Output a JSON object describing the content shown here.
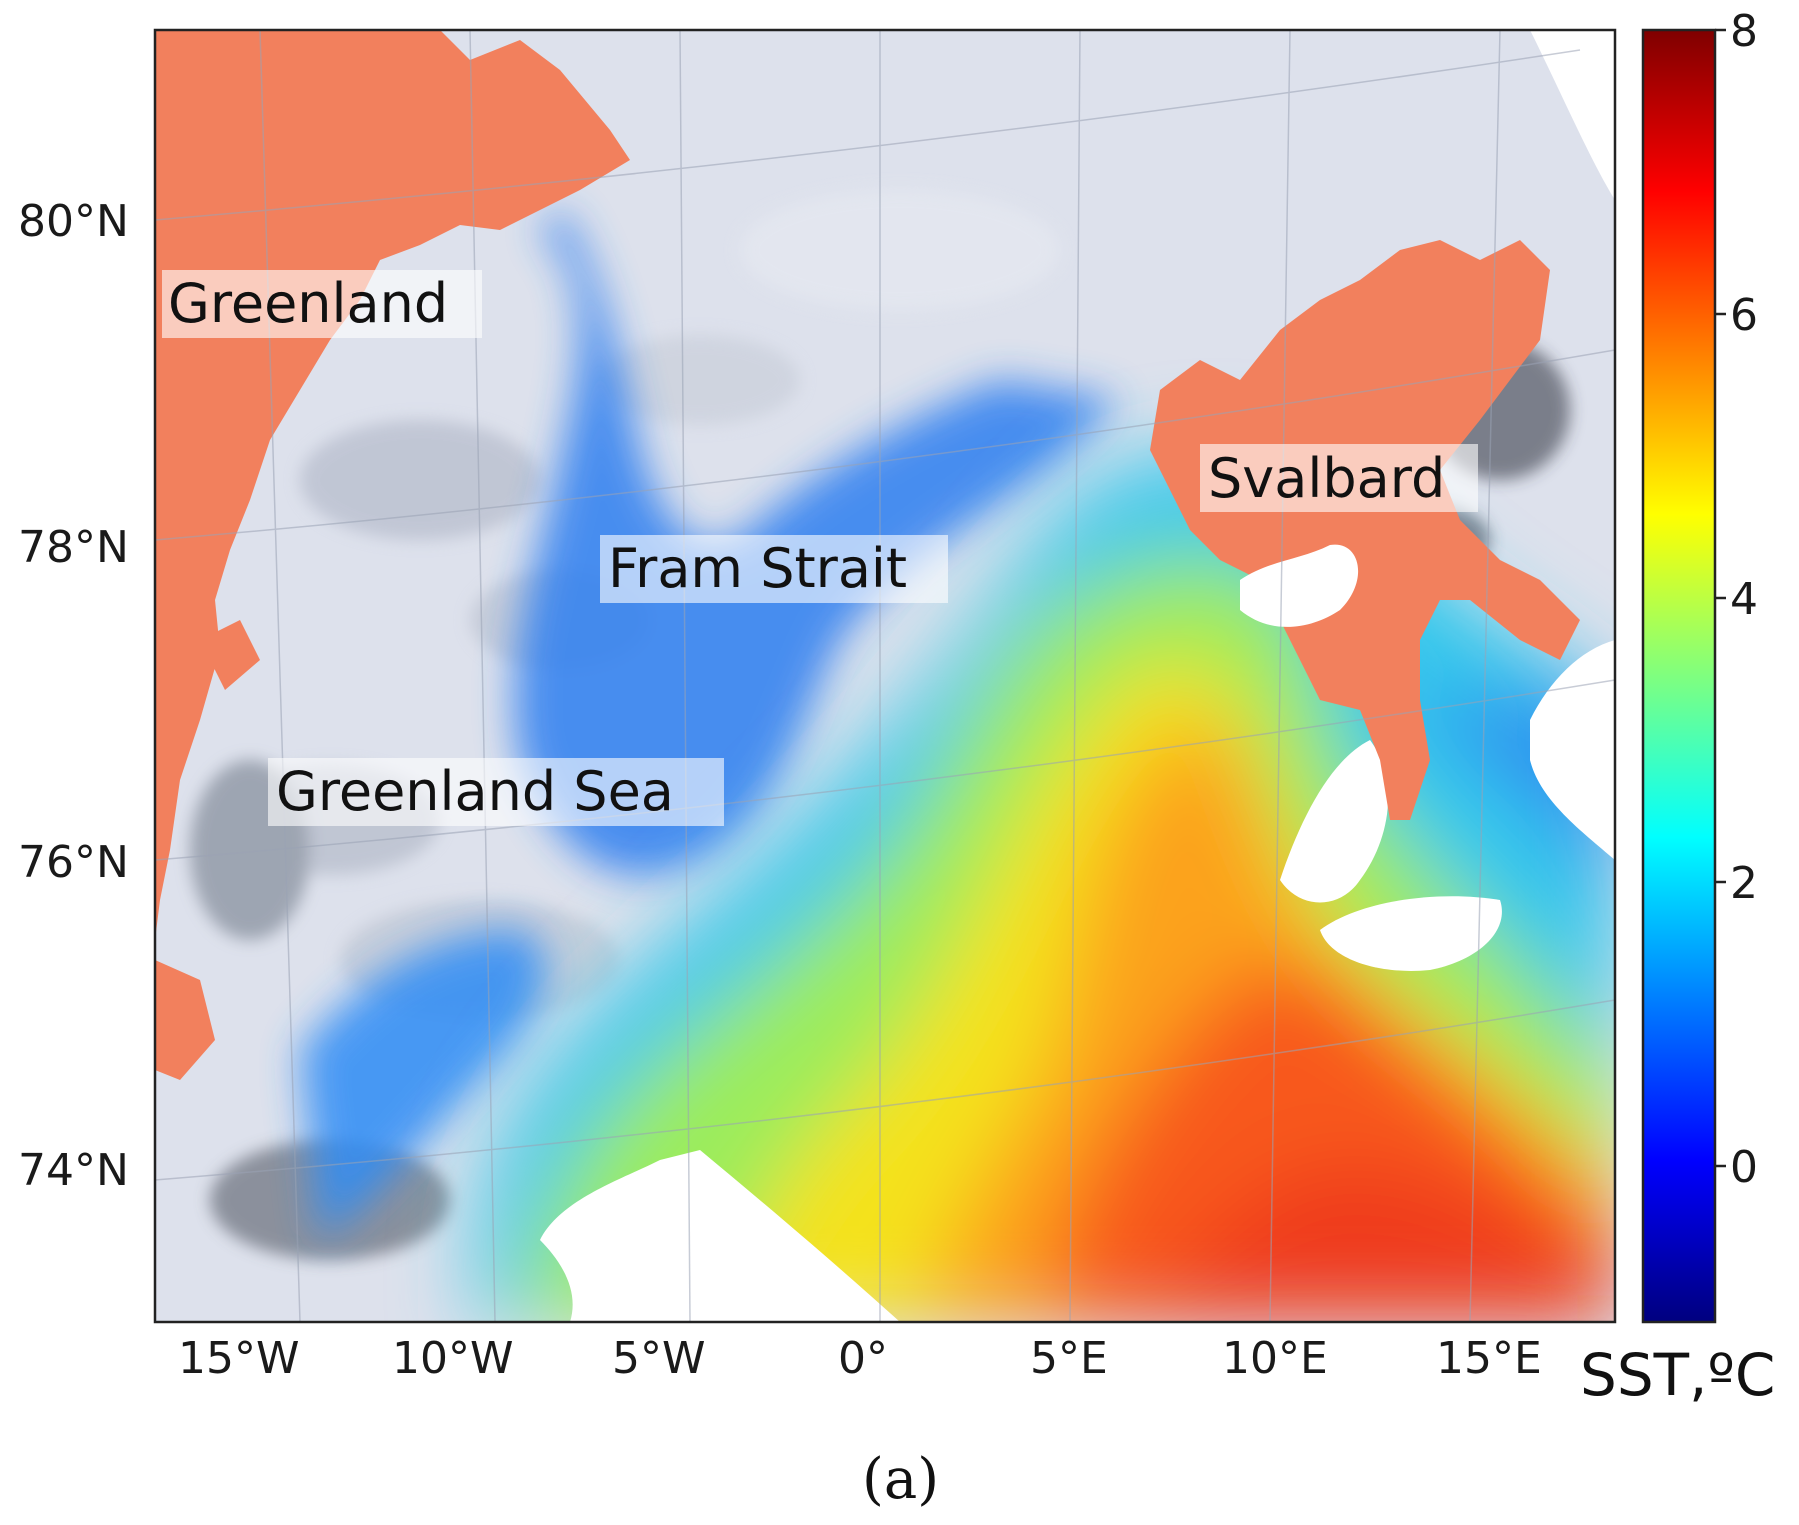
{
  "map": {
    "lat_labels": [
      "80°N",
      "78°N",
      "76°N",
      "74°N"
    ],
    "lon_labels": [
      "15°W",
      "10°W",
      "5°W",
      "0°",
      "5°E",
      "10°E",
      "15°E"
    ],
    "places": {
      "greenland": "Greenland",
      "fram_strait": "Fram Strait",
      "greenland_sea": "Greenland Sea",
      "svalbard": "Svalbard"
    },
    "colors": {
      "land": "#f2805d",
      "ice": "#dfe3ee",
      "no_data": "#ffffff",
      "frame": "#222222"
    }
  },
  "colorbar": {
    "ticks": [
      "8",
      "6",
      "4",
      "2",
      "0"
    ],
    "label": "SST,ºC",
    "min": -1.1,
    "max": 8,
    "colormap": [
      "#00007f",
      "#0000ff",
      "#007fff",
      "#00ffff",
      "#7fff7f",
      "#ffff00",
      "#ff7f00",
      "#ff0000",
      "#7f0000"
    ]
  },
  "panel_label": "(a)"
}
